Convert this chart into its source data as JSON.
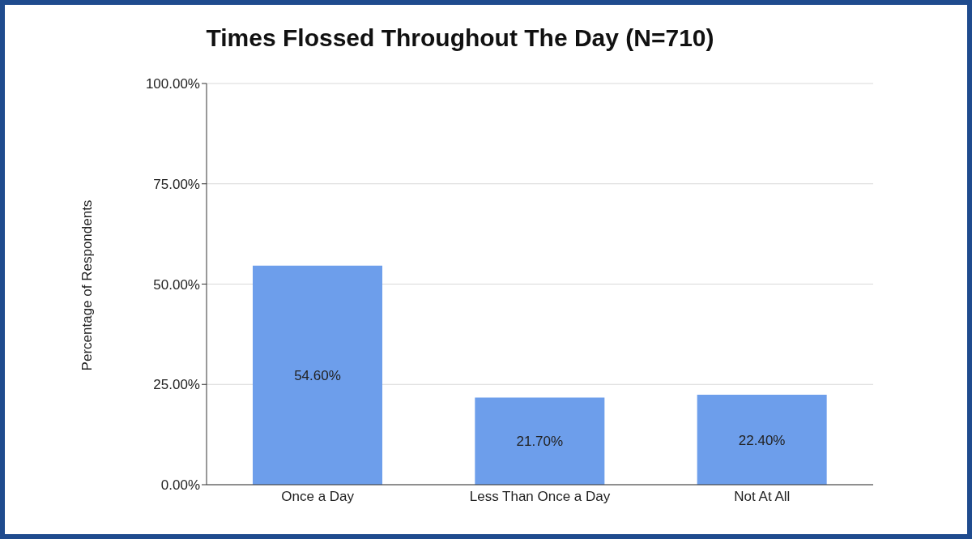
{
  "chart_data": {
    "type": "bar",
    "title": "Times Flossed Throughout The Day (N=710)",
    "ylabel": "Percentage of Respondents",
    "categories": [
      "Once a Day",
      "Less Than Once a Day",
      "Not At All"
    ],
    "values": [
      54.6,
      21.7,
      22.4
    ],
    "color": "#6d9eeb",
    "value_labels": [
      "54.60%",
      "21.70%",
      "22.40%"
    ],
    "ylim": [
      0,
      100
    ],
    "yticks": [
      {
        "value": 0,
        "label": "0.00%"
      },
      {
        "value": 25,
        "label": "25.00%"
      },
      {
        "value": 50,
        "label": "50.00%"
      },
      {
        "value": 75,
        "label": "75.00%"
      },
      {
        "value": 100,
        "label": "100.00%"
      }
    ],
    "grid": "y"
  }
}
